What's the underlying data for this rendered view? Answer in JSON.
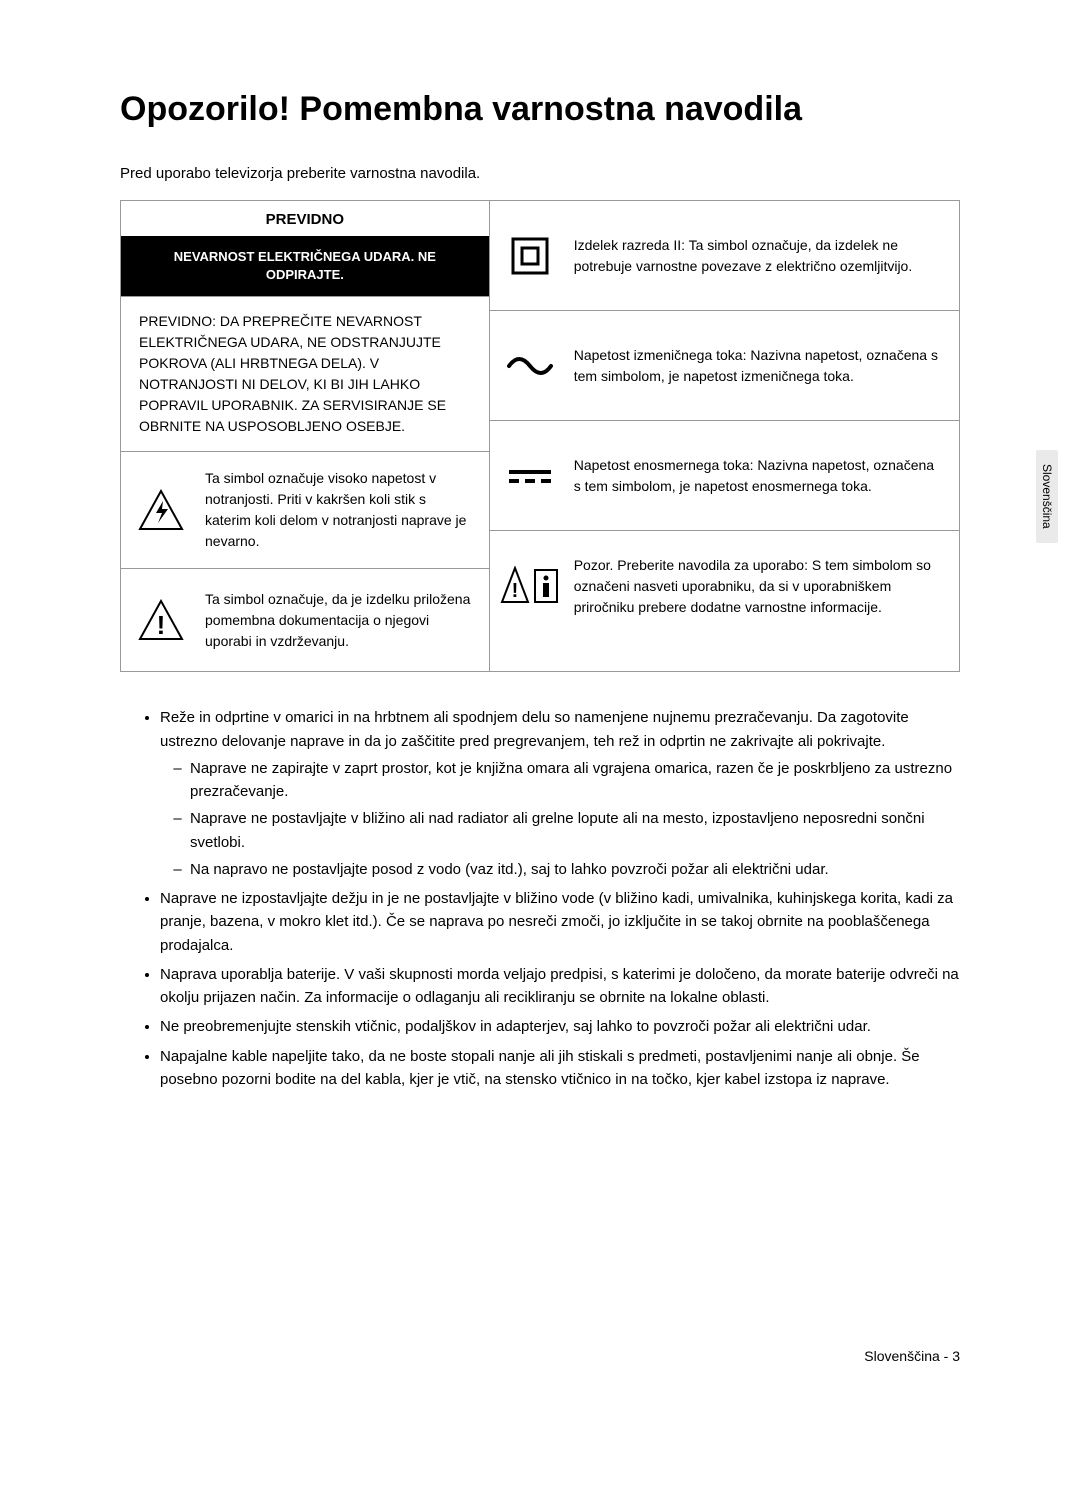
{
  "title": "Opozorilo! Pomembna varnostna navodila",
  "intro": "Pred uporabo televizorja preberite varnostna navodila.",
  "table": {
    "caution_label": "PREVIDNO",
    "caution_banner": "NEVARNOST ELEKTRIČNEGA UDARA. NE ODPIRAJTE.",
    "caution_body": "PREVIDNO: DA PREPREČITE NEVARNOST ELEKTRIČNEGA UDARA, NE ODSTRANJUJTE POKROVA (ALI HRBTNEGA DELA). V NOTRANJOSTI NI DELOV, KI BI JIH LAHKO POPRAVIL UPORABNIK. ZA SERVISIRANJE SE OBRNITE NA USPOSOBLJENO OSEBJE.",
    "left_rows": [
      "Ta simbol označuje visoko napetost v notranjosti. Priti v kakršen koli stik s katerim koli delom v notranjosti naprave je nevarno.",
      "Ta simbol označuje, da je izdelku priložena pomembna dokumentacija o njegovi uporabi in vzdrževanju."
    ],
    "right_rows": [
      "Izdelek razreda II: Ta simbol označuje, da izdelek ne potrebuje varnostne povezave z električno ozemljitvijo.",
      "Napetost izmeničnega toka: Nazivna napetost, označena s tem simbolom, je napetost izmeničnega toka.",
      "Napetost enosmernega toka: Nazivna napetost, označena s tem simbolom, je napetost enosmernega toka.",
      "Pozor. Preberite navodila za uporabo: S tem simbolom so označeni nasveti uporabniku, da si v uporabniškem priročniku prebere dodatne varnostne informacije."
    ]
  },
  "bullets": [
    {
      "text": "Reže in odprtine v omarici in na hrbtnem ali spodnjem delu so namenjene nujnemu prezračevanju. Da zagotovite ustrezno delovanje naprave in da jo zaščitite pred pregrevanjem, teh rež in odprtin ne zakrivajte ali pokrivajte.",
      "sub": [
        "Naprave ne zapirajte v zaprt prostor, kot je knjižna omara ali vgrajena omarica, razen če je poskrbljeno za ustrezno prezračevanje.",
        "Naprave ne postavljajte v bližino ali nad radiator ali grelne lopute ali na mesto, izpostavljeno neposredni sončni svetlobi.",
        "Na napravo ne postavljajte posod z vodo (vaz itd.), saj to lahko povzroči požar ali električni udar."
      ]
    },
    {
      "text": "Naprave ne izpostavljajte dežju in je ne postavljajte v bližino vode (v bližino kadi, umivalnika, kuhinjskega korita, kadi za pranje, bazena, v mokro klet itd.). Če se naprava po nesreči zmoči, jo izključite in se takoj obrnite na pooblaščenega prodajalca."
    },
    {
      "text": "Naprava uporablja baterije. V vaši skupnosti morda veljajo predpisi, s katerimi je določeno, da morate baterije odvreči na okolju prijazen način. Za informacije o odlaganju ali recikliranju se obrnite na lokalne oblasti."
    },
    {
      "text": "Ne preobremenjujte stenskih vtičnic, podaljškov in adapterjev, saj lahko to povzroči požar ali električni udar."
    },
    {
      "text": "Napajalne kable napeljite tako, da ne boste stopali nanje ali jih stiskali s predmeti, postavljenimi nanje ali obnje. Še posebno pozorni bodite na del kabla, kjer je vtič, na stensko vtičnico in na točko, kjer kabel izstopa iz naprave."
    }
  ],
  "side_tab": "Slovenščina",
  "footer": "Slovenščina - 3"
}
